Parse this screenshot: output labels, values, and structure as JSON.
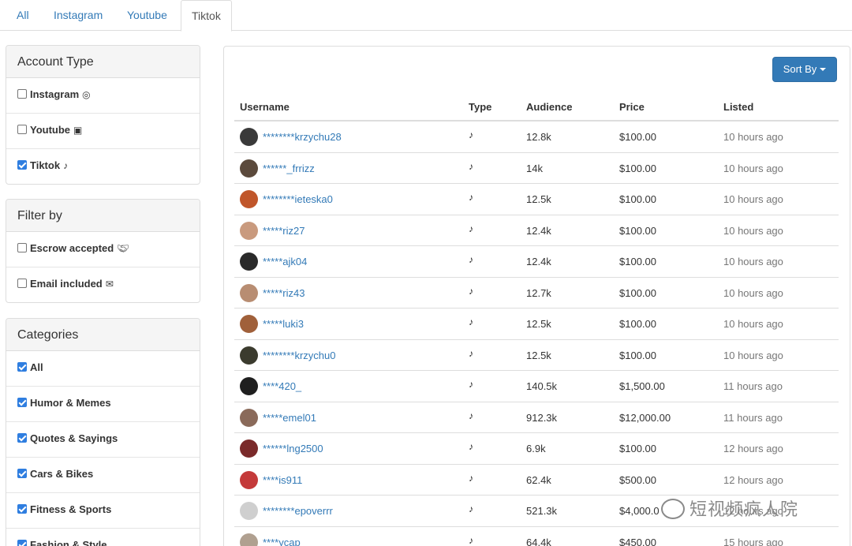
{
  "tabs": [
    {
      "label": "All",
      "active": false
    },
    {
      "label": "Instagram",
      "active": false
    },
    {
      "label": "Youtube",
      "active": false
    },
    {
      "label": "Tiktok",
      "active": true
    }
  ],
  "account_type": {
    "title": "Account Type",
    "items": [
      {
        "label": "Instagram",
        "checked": false,
        "icon": "instagram-icon"
      },
      {
        "label": "Youtube",
        "checked": false,
        "icon": "youtube-icon"
      },
      {
        "label": "Tiktok",
        "checked": true,
        "icon": "tiktok-icon"
      }
    ]
  },
  "filter_by": {
    "title": "Filter by",
    "items": [
      {
        "label": "Escrow accepted",
        "checked": false,
        "icon": "handshake-icon"
      },
      {
        "label": "Email included",
        "checked": false,
        "icon": "envelope-open-icon"
      }
    ]
  },
  "categories": {
    "title": "Categories",
    "items": [
      {
        "label": "All",
        "checked": true
      },
      {
        "label": "Humor & Memes",
        "checked": true
      },
      {
        "label": "Quotes & Sayings",
        "checked": true
      },
      {
        "label": "Cars & Bikes",
        "checked": true
      },
      {
        "label": "Fitness & Sports",
        "checked": true
      },
      {
        "label": "Fashion & Style",
        "checked": true
      }
    ]
  },
  "main": {
    "sort_label": "Sort By",
    "columns": {
      "username": "Username",
      "type": "Type",
      "audience": "Audience",
      "price": "Price",
      "listed": "Listed"
    },
    "rows": [
      {
        "username": "********krzychu28",
        "audience": "12.8k",
        "price": "$100.00",
        "listed": "10 hours ago",
        "avatar_color": "#3a3a3a"
      },
      {
        "username": "******_frrizz",
        "audience": "14k",
        "price": "$100.00",
        "listed": "10 hours ago",
        "avatar_color": "#5b4a3c"
      },
      {
        "username": "********ieteska0",
        "audience": "12.5k",
        "price": "$100.00",
        "listed": "10 hours ago",
        "avatar_color": "#c0562a"
      },
      {
        "username": "*****riz27",
        "audience": "12.4k",
        "price": "$100.00",
        "listed": "10 hours ago",
        "avatar_color": "#c99a7e"
      },
      {
        "username": "*****ajk04",
        "audience": "12.4k",
        "price": "$100.00",
        "listed": "10 hours ago",
        "avatar_color": "#2a2a2a"
      },
      {
        "username": "*****riz43",
        "audience": "12.7k",
        "price": "$100.00",
        "listed": "10 hours ago",
        "avatar_color": "#b88d72"
      },
      {
        "username": "*****luki3",
        "audience": "12.5k",
        "price": "$100.00",
        "listed": "10 hours ago",
        "avatar_color": "#a0603a"
      },
      {
        "username": "********krzychu0",
        "audience": "12.5k",
        "price": "$100.00",
        "listed": "10 hours ago",
        "avatar_color": "#3b3b2e"
      },
      {
        "username": "****420_",
        "audience": "140.5k",
        "price": "$1,500.00",
        "listed": "11 hours ago",
        "avatar_color": "#1f1f1f"
      },
      {
        "username": "*****emel01",
        "audience": "912.3k",
        "price": "$12,000.00",
        "listed": "11 hours ago",
        "avatar_color": "#8a6a5a"
      },
      {
        "username": "******lng2500",
        "audience": "6.9k",
        "price": "$100.00",
        "listed": "12 hours ago",
        "avatar_color": "#7a2a2a"
      },
      {
        "username": "****is911",
        "audience": "62.4k",
        "price": "$500.00",
        "listed": "12 hours ago",
        "avatar_color": "#c43a3a"
      },
      {
        "username": "********epoverrr",
        "audience": "521.3k",
        "price": "$4,000.0",
        "listed": "12 hours ago",
        "avatar_color": "#cfcfcf"
      },
      {
        "username": "****ycap",
        "audience": "64.4k",
        "price": "$450.00",
        "listed": "15 hours ago",
        "avatar_color": "#b0a090"
      }
    ]
  },
  "watermark": "短视频疯人院"
}
